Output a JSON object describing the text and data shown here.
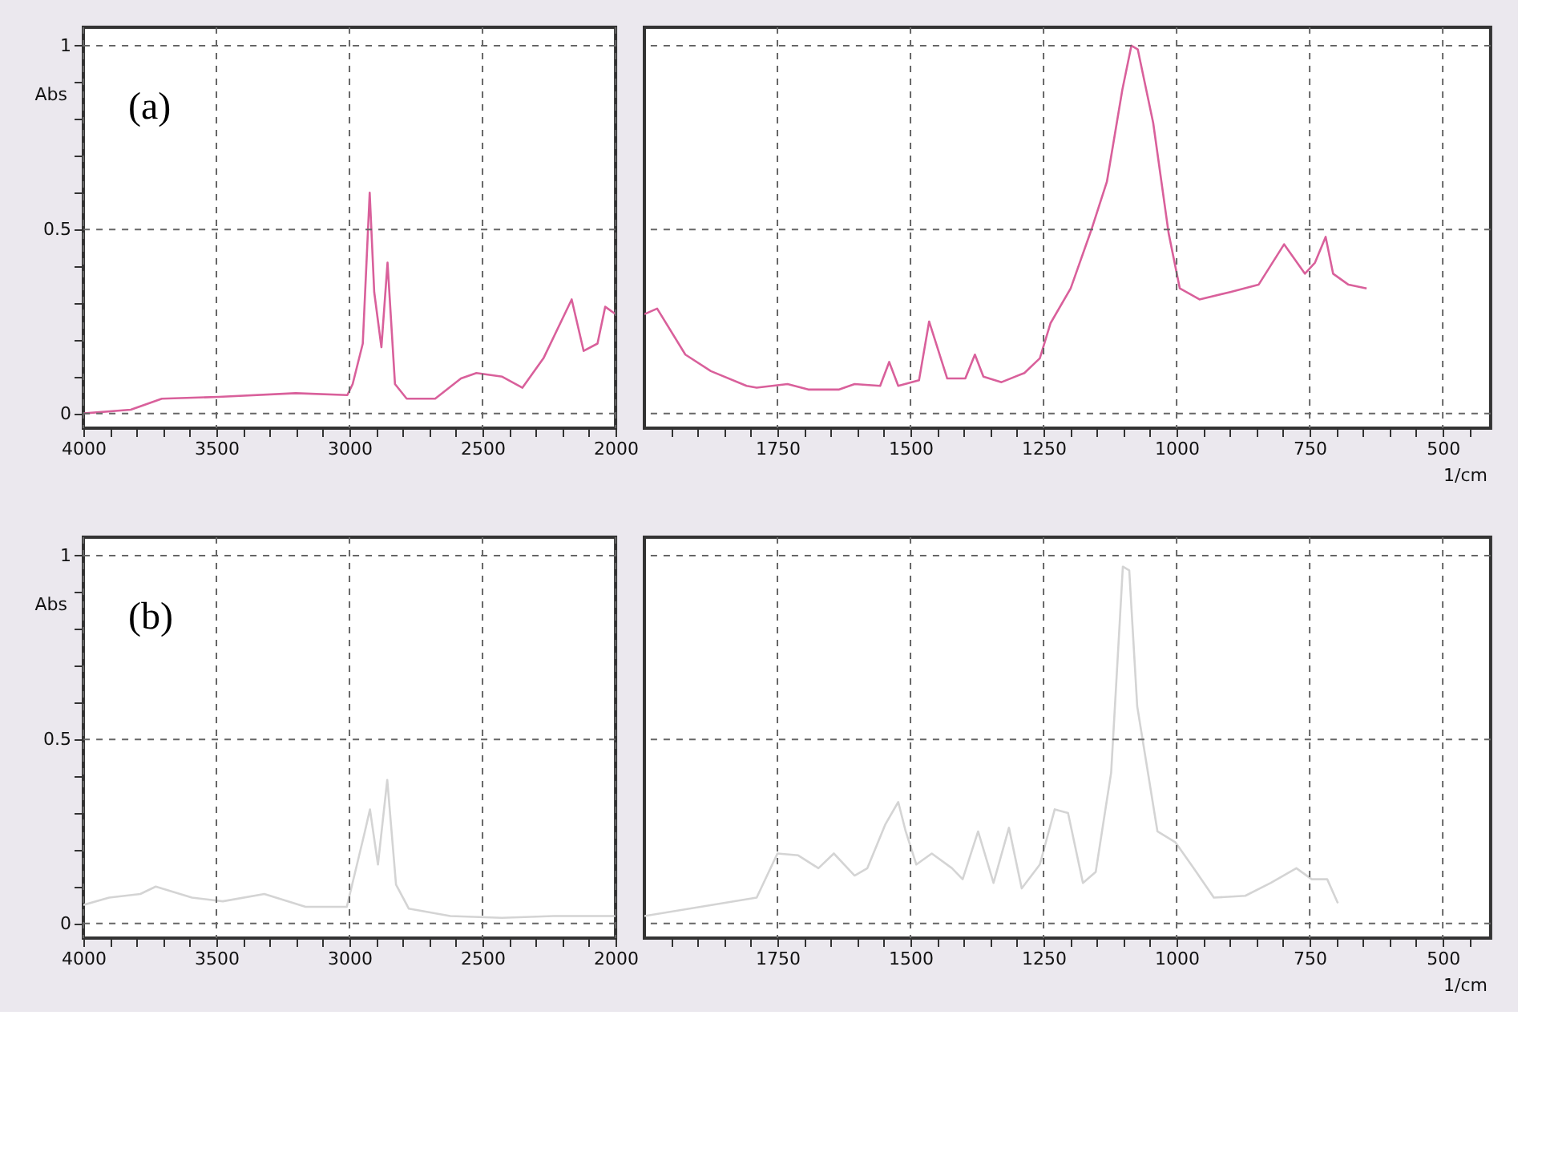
{
  "chart_data": [
    {
      "type": "line",
      "ylabel": "Abs",
      "annotations": [
        "(a)"
      ],
      "grid": true,
      "xlim": [
        4000,
        2000
      ],
      "ylim": [
        -0.04,
        1.05
      ],
      "xticks": [
        4000,
        {
          "value": 3900,
          "label": null
        },
        {
          "value": 3800,
          "label": null
        },
        {
          "value": 3700,
          "label": null
        },
        {
          "value": 3600,
          "label": null
        },
        3500,
        {
          "value": 3400,
          "label": null
        },
        {
          "value": 3300,
          "label": null
        },
        {
          "value": 3200,
          "label": null
        },
        {
          "value": 3100,
          "label": null
        },
        3000,
        {
          "value": 2900,
          "label": null
        },
        {
          "value": 2800,
          "label": null
        },
        {
          "value": 2700,
          "label": null
        },
        {
          "value": 2600,
          "label": null
        },
        2500,
        {
          "value": 2400,
          "label": null
        },
        {
          "value": 2300,
          "label": null
        },
        {
          "value": 2200,
          "label": null
        },
        {
          "value": 2100,
          "label": null
        },
        2000
      ],
      "yticks": [
        0,
        {
          "value": 0.1,
          "label": null
        },
        {
          "value": 0.2,
          "label": null
        },
        {
          "value": 0.3,
          "label": null
        },
        {
          "value": 0.4,
          "label": null
        },
        0.5,
        {
          "value": 0.6,
          "label": null
        },
        {
          "value": 0.7,
          "label": null
        },
        {
          "value": 0.8,
          "label": null
        },
        {
          "value": 0.9,
          "label": null
        },
        1
      ],
      "series": [
        {
          "color": "#d9609b",
          "x": [
            4000,
            3822,
            3705,
            3492,
            3202,
            3008,
            2988,
            2950,
            2924,
            2907,
            2880,
            2857,
            2829,
            2785,
            2678,
            2581,
            2523,
            2426,
            2350,
            2271,
            2165,
            2120,
            2068,
            2039,
            2000
          ],
          "values": [
            0.0,
            0.01,
            0.04,
            0.045,
            0.055,
            0.05,
            0.08,
            0.19,
            0.6,
            0.33,
            0.18,
            0.41,
            0.08,
            0.04,
            0.04,
            0.095,
            0.11,
            0.1,
            0.07,
            0.15,
            0.31,
            0.17,
            0.19,
            0.29,
            0.27
          ]
        }
      ]
    },
    {
      "type": "line",
      "xlabel": "1/cm",
      "grid": true,
      "tick_labels": "x",
      "xlim": [
        2000,
        410
      ],
      "ylim": [
        -0.04,
        1.05
      ],
      "xticks": [
        {
          "value": 1950,
          "label": null
        },
        {
          "value": 1900,
          "label": null
        },
        {
          "value": 1850,
          "label": null
        },
        {
          "value": 1800,
          "label": null
        },
        1750,
        {
          "value": 1700,
          "label": null
        },
        {
          "value": 1650,
          "label": null
        },
        {
          "value": 1600,
          "label": null
        },
        {
          "value": 1550,
          "label": null
        },
        1500,
        {
          "value": 1450,
          "label": null
        },
        {
          "value": 1400,
          "label": null
        },
        {
          "value": 1350,
          "label": null
        },
        {
          "value": 1300,
          "label": null
        },
        1250,
        {
          "value": 1200,
          "label": null
        },
        {
          "value": 1150,
          "label": null
        },
        {
          "value": 1100,
          "label": null
        },
        {
          "value": 1050,
          "label": null
        },
        1000,
        {
          "value": 950,
          "label": null
        },
        {
          "value": 900,
          "label": null
        },
        {
          "value": 850,
          "label": null
        },
        {
          "value": 800,
          "label": null
        },
        750,
        {
          "value": 700,
          "label": null
        },
        {
          "value": 650,
          "label": null
        },
        {
          "value": 600,
          "label": null
        },
        {
          "value": 550,
          "label": null
        },
        500,
        {
          "value": 450,
          "label": null
        }
      ],
      "yticks": [
        0,
        0.5,
        1
      ],
      "series": [
        {
          "color": "#d9609b",
          "x": [
            2000,
            1976,
            1923,
            1875,
            1808,
            1789,
            1731,
            1692,
            1634,
            1605,
            1557,
            1540,
            1523,
            1484,
            1465,
            1431,
            1397,
            1379,
            1363,
            1329,
            1286,
            1257,
            1237,
            1199,
            1160,
            1131,
            1102,
            1085,
            1073,
            1044,
            1015,
            994,
            957,
            899,
            846,
            798,
            759,
            740,
            720,
            706,
            677,
            643
          ],
          "values": [
            0.27,
            0.285,
            0.16,
            0.115,
            0.075,
            0.07,
            0.08,
            0.065,
            0.065,
            0.08,
            0.075,
            0.14,
            0.075,
            0.09,
            0.25,
            0.095,
            0.095,
            0.16,
            0.1,
            0.085,
            0.11,
            0.15,
            0.245,
            0.34,
            0.5,
            0.63,
            0.88,
            1.0,
            0.99,
            0.79,
            0.49,
            0.34,
            0.31,
            0.33,
            0.35,
            0.46,
            0.38,
            0.41,
            0.48,
            0.38,
            0.35,
            0.34
          ]
        }
      ]
    },
    {
      "type": "line",
      "ylabel": "Abs",
      "annotations": [
        "(b)"
      ],
      "grid": true,
      "xlim": [
        4000,
        2000
      ],
      "ylim": [
        -0.04,
        1.05
      ],
      "xticks": [
        4000,
        {
          "value": 3900,
          "label": null
        },
        {
          "value": 3800,
          "label": null
        },
        {
          "value": 3700,
          "label": null
        },
        {
          "value": 3600,
          "label": null
        },
        3500,
        {
          "value": 3400,
          "label": null
        },
        {
          "value": 3300,
          "label": null
        },
        {
          "value": 3200,
          "label": null
        },
        {
          "value": 3100,
          "label": null
        },
        3000,
        {
          "value": 2900,
          "label": null
        },
        {
          "value": 2800,
          "label": null
        },
        {
          "value": 2700,
          "label": null
        },
        {
          "value": 2600,
          "label": null
        },
        2500,
        {
          "value": 2400,
          "label": null
        },
        {
          "value": 2300,
          "label": null
        },
        {
          "value": 2200,
          "label": null
        },
        {
          "value": 2100,
          "label": null
        },
        2000
      ],
      "yticks": [
        0,
        {
          "value": 0.1,
          "label": null
        },
        {
          "value": 0.2,
          "label": null
        },
        {
          "value": 0.3,
          "label": null
        },
        {
          "value": 0.4,
          "label": null
        },
        0.5,
        {
          "value": 0.6,
          "label": null
        },
        {
          "value": 0.7,
          "label": null
        },
        {
          "value": 0.8,
          "label": null
        },
        {
          "value": 0.9,
          "label": null
        },
        1
      ],
      "series": [
        {
          "color": "#d4d4d4",
          "x": [
            4000,
            3903,
            3786,
            3728,
            3592,
            3476,
            3320,
            3165,
            3010,
            2942,
            2923,
            2893,
            2858,
            2825,
            2777,
            2621,
            2427,
            2233,
            2000
          ],
          "values": [
            0.05,
            0.07,
            0.08,
            0.1,
            0.07,
            0.06,
            0.08,
            0.045,
            0.045,
            0.25,
            0.31,
            0.16,
            0.39,
            0.105,
            0.04,
            0.02,
            0.015,
            0.02,
            0.02
          ]
        }
      ]
    },
    {
      "type": "line",
      "xlabel": "1/cm",
      "grid": true,
      "tick_labels": "x",
      "xlim": [
        2000,
        410
      ],
      "ylim": [
        -0.04,
        1.05
      ],
      "xticks": [
        {
          "value": 1950,
          "label": null
        },
        {
          "value": 1900,
          "label": null
        },
        {
          "value": 1850,
          "label": null
        },
        {
          "value": 1800,
          "label": null
        },
        1750,
        {
          "value": 1700,
          "label": null
        },
        {
          "value": 1650,
          "label": null
        },
        {
          "value": 1600,
          "label": null
        },
        {
          "value": 1550,
          "label": null
        },
        1500,
        {
          "value": 1450,
          "label": null
        },
        {
          "value": 1400,
          "label": null
        },
        {
          "value": 1350,
          "label": null
        },
        {
          "value": 1300,
          "label": null
        },
        1250,
        {
          "value": 1200,
          "label": null
        },
        {
          "value": 1150,
          "label": null
        },
        {
          "value": 1100,
          "label": null
        },
        {
          "value": 1050,
          "label": null
        },
        1000,
        {
          "value": 950,
          "label": null
        },
        {
          "value": 900,
          "label": null
        },
        {
          "value": 850,
          "label": null
        },
        {
          "value": 800,
          "label": null
        },
        750,
        {
          "value": 700,
          "label": null
        },
        {
          "value": 650,
          "label": null
        },
        {
          "value": 600,
          "label": null
        },
        {
          "value": 550,
          "label": null
        },
        500,
        {
          "value": 450,
          "label": null
        }
      ],
      "yticks": [
        0,
        0.5,
        1
      ],
      "series": [
        {
          "color": "#d4d4d4",
          "x": [
            2000,
            1789,
            1750,
            1711,
            1673,
            1644,
            1605,
            1581,
            1547,
            1523,
            1509,
            1489,
            1460,
            1422,
            1402,
            1373,
            1344,
            1315,
            1291,
            1257,
            1229,
            1204,
            1176,
            1152,
            1123,
            1108,
            1101,
            1089,
            1074,
            1036,
            1002,
            968,
            930,
            871,
            823,
            775,
            746,
            717,
            697
          ],
          "values": [
            0.02,
            0.07,
            0.19,
            0.185,
            0.15,
            0.19,
            0.13,
            0.15,
            0.27,
            0.33,
            0.25,
            0.16,
            0.19,
            0.15,
            0.12,
            0.25,
            0.11,
            0.26,
            0.095,
            0.16,
            0.31,
            0.3,
            0.11,
            0.14,
            0.41,
            0.79,
            0.97,
            0.96,
            0.59,
            0.25,
            0.22,
            0.15,
            0.07,
            0.075,
            0.11,
            0.15,
            0.12,
            0.12,
            0.055
          ]
        }
      ]
    }
  ]
}
